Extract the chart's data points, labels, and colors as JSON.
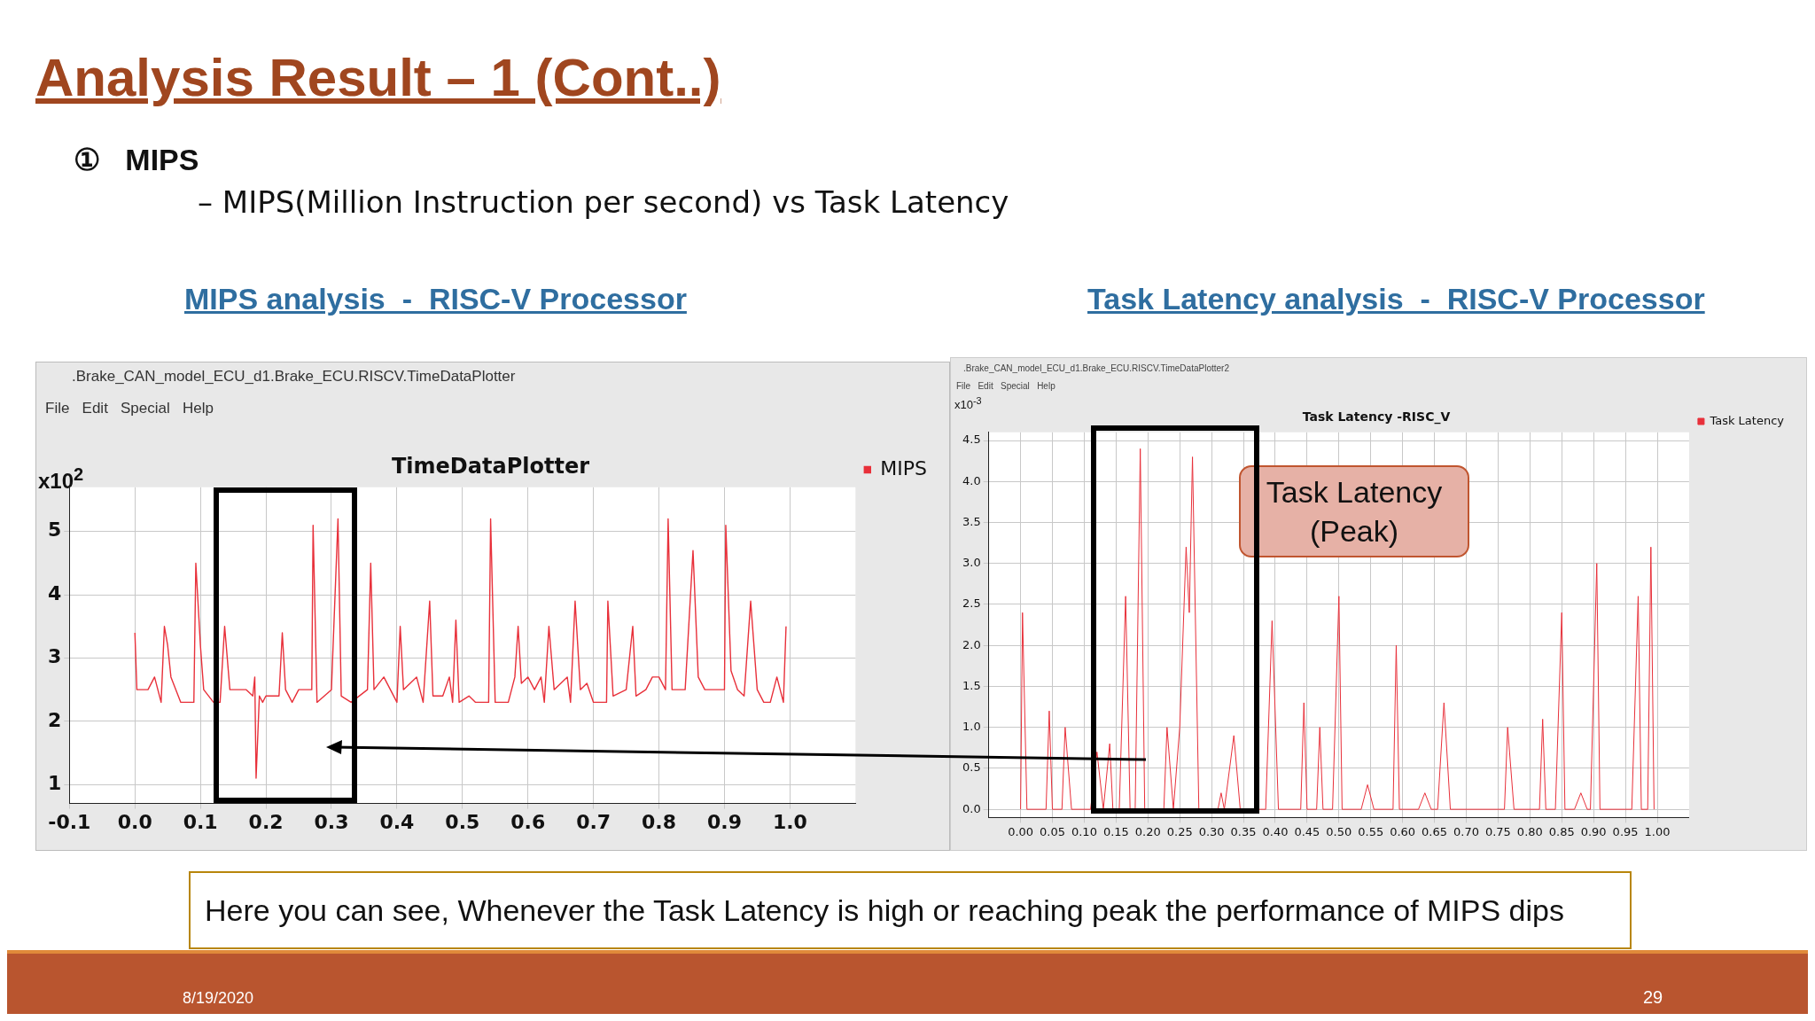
{
  "chart_data": [
    {
      "type": "line",
      "title": "TimeDataPlotter",
      "subtitle": "MIPS analysis  -  RISC-V Processor",
      "ylabel": "x10$^{2}$",
      "annotations": [
        "Analysis Result – 1 (Cont..)",
        "①   MIPS",
        "– MIPS(Million Instruction per second) vs Task Latency",
        ".Brake_CAN_model_ECU_d1.Brake_ECU.RISCV.TimeDataPlotter",
        "File   Edit   Special   Help",
        "Here you can see, Whenever the Task Latency is high or reaching peak the performance of  MIPS dips",
        "8/19/2020",
        "29"
      ],
      "x": [
        0,
        0.003,
        0.02,
        0.03,
        0.04,
        0.045,
        0.05,
        0.055,
        0.07,
        0.09,
        0.093,
        0.1,
        0.105,
        0.12,
        0.13,
        0.137,
        0.145,
        0.17,
        0.18,
        0.183,
        0.185,
        0.19,
        0.195,
        0.2,
        0.21,
        0.22,
        0.225,
        0.23,
        0.24,
        0.25,
        0.27,
        0.272,
        0.278,
        0.3,
        0.31,
        0.315,
        0.33,
        0.355,
        0.36,
        0.365,
        0.38,
        0.4,
        0.405,
        0.41,
        0.43,
        0.44,
        0.45,
        0.455,
        0.47,
        0.48,
        0.485,
        0.49,
        0.495,
        0.51,
        0.52,
        0.54,
        0.543,
        0.55,
        0.57,
        0.58,
        0.585,
        0.59,
        0.6,
        0.61,
        0.62,
        0.625,
        0.632,
        0.64,
        0.66,
        0.665,
        0.672,
        0.68,
        0.69,
        0.7,
        0.72,
        0.722,
        0.73,
        0.75,
        0.76,
        0.765,
        0.78,
        0.79,
        0.8,
        0.81,
        0.814,
        0.82,
        0.84,
        0.852,
        0.86,
        0.87,
        0.9,
        0.902,
        0.91,
        0.92,
        0.93,
        0.94,
        0.95,
        0.96,
        0.97,
        0.98,
        0.99,
        0.994
      ],
      "series": [
        {
          "name": "MIPS",
          "color": "#e8303a",
          "values": [
            3.4,
            2.5,
            2.5,
            2.7,
            2.3,
            3.5,
            3.2,
            2.7,
            2.3,
            2.3,
            4.5,
            3.2,
            2.5,
            2.3,
            2.3,
            3.5,
            2.5,
            2.5,
            2.4,
            2.7,
            1.1,
            2.4,
            2.3,
            2.4,
            2.4,
            2.4,
            3.4,
            2.5,
            2.3,
            2.5,
            2.5,
            5.1,
            2.3,
            2.5,
            5.2,
            2.4,
            2.3,
            2.5,
            4.5,
            2.5,
            2.7,
            2.3,
            3.5,
            2.5,
            2.7,
            2.3,
            3.9,
            2.4,
            2.4,
            2.7,
            2.3,
            3.6,
            2.3,
            2.4,
            2.3,
            2.3,
            5.2,
            2.3,
            2.3,
            2.7,
            3.5,
            2.6,
            2.7,
            2.5,
            2.7,
            2.3,
            3.5,
            2.5,
            2.7,
            2.3,
            3.9,
            2.5,
            2.6,
            2.3,
            2.3,
            3.9,
            2.4,
            2.5,
            3.5,
            2.4,
            2.5,
            2.7,
            2.7,
            2.5,
            5.2,
            2.5,
            2.5,
            4.7,
            2.7,
            2.5,
            2.5,
            5.1,
            2.8,
            2.5,
            2.4,
            3.9,
            2.5,
            2.3,
            2.3,
            2.7,
            2.3,
            3.5
          ]
        }
      ],
      "xlim": [
        -0.1,
        1.1
      ],
      "xticks": [
        -0.1,
        {
          "value": 0,
          "label": "0.0"
        },
        0.1,
        0.2,
        0.3,
        0.4,
        0.5,
        0.6,
        0.7,
        0.8,
        0.9,
        {
          "value": 1,
          "label": "1.0"
        }
      ],
      "ylim": [
        0.7,
        5.7
      ],
      "yticks": [
        1,
        2,
        3,
        4,
        5
      ],
      "grid": true,
      "legend": "right",
      "marker": "none",
      "line_style": "solid"
    },
    {
      "type": "line",
      "title": "Task Latency -RISC_V",
      "subtitle": "Task Latency analysis  -  RISC-V Processor",
      "ylabel": "x10$^{-3}$",
      "annotations": [
        ".Brake_CAN_model_ECU_d1.Brake_ECU.RISCV.TimeDataPlotter2",
        "File   Edit   Special   Help",
        "Task Latency\n(Peak)"
      ],
      "x": [
        0,
        0.003,
        0.01,
        0.04,
        0.045,
        0.05,
        0.065,
        0.07,
        0.08,
        0.11,
        0.12,
        0.13,
        0.14,
        0.145,
        0.155,
        0.165,
        0.172,
        0.18,
        0.188,
        0.195,
        0.225,
        0.23,
        0.24,
        0.25,
        0.26,
        0.265,
        0.27,
        0.28,
        0.31,
        0.315,
        0.32,
        0.335,
        0.345,
        0.385,
        0.395,
        0.405,
        0.44,
        0.445,
        0.45,
        0.465,
        0.47,
        0.475,
        0.49,
        0.5,
        0.505,
        0.535,
        0.545,
        0.555,
        0.585,
        0.59,
        0.595,
        0.625,
        0.635,
        0.645,
        0.655,
        0.665,
        0.675,
        0.76,
        0.765,
        0.775,
        0.815,
        0.82,
        0.825,
        0.84,
        0.85,
        0.855,
        0.87,
        0.88,
        0.89,
        0.895,
        0.905,
        0.91,
        0.96,
        0.97,
        0.975,
        0.985,
        0.99,
        0.995
      ],
      "series": [
        {
          "name": "Task Latency",
          "color": "#e8303a",
          "values": [
            0,
            2.4,
            0,
            0,
            1.2,
            0,
            0,
            1.0,
            0,
            0,
            0.7,
            0,
            0.8,
            0,
            0,
            2.6,
            0,
            0,
            4.4,
            0,
            0,
            1.0,
            0,
            1.0,
            3.2,
            2.4,
            4.3,
            0,
            0,
            0.2,
            0,
            0.9,
            0,
            0,
            2.3,
            0,
            0,
            1.3,
            0,
            0,
            1.0,
            0,
            0,
            2.6,
            0,
            0,
            0.3,
            0,
            0,
            2.0,
            0,
            0,
            0.2,
            0,
            0,
            1.3,
            0,
            0,
            1.0,
            0,
            0,
            1.1,
            0,
            0,
            2.4,
            0,
            0,
            0.2,
            0,
            0,
            3.0,
            0,
            0,
            2.6,
            0,
            0,
            3.2,
            0
          ]
        }
      ],
      "xlim": [
        -0.05,
        1.05
      ],
      "xticks": [
        {
          "value": 0,
          "label": "0.00"
        },
        0.05,
        {
          "value": 0.1,
          "label": "0.10"
        },
        0.15,
        {
          "value": 0.2,
          "label": "0.20"
        },
        0.25,
        {
          "value": 0.3,
          "label": "0.30"
        },
        0.35,
        {
          "value": 0.4,
          "label": "0.40"
        },
        0.45,
        {
          "value": 0.5,
          "label": "0.50"
        },
        0.55,
        {
          "value": 0.6,
          "label": "0.60"
        },
        0.65,
        {
          "value": 0.7,
          "label": "0.70"
        },
        0.75,
        {
          "value": 0.8,
          "label": "0.80"
        },
        0.85,
        {
          "value": 0.9,
          "label": "0.90"
        },
        0.95,
        {
          "value": 1,
          "label": "1.00"
        }
      ],
      "ylim": [
        -0.1,
        4.6
      ],
      "yticks": [
        {
          "value": 0,
          "label": "0.0"
        },
        0.5,
        {
          "value": 1,
          "label": "1.0"
        },
        1.5,
        {
          "value": 2,
          "label": "2.0"
        },
        2.5,
        {
          "value": 3,
          "label": "3.0"
        },
        3.5,
        {
          "value": 4,
          "label": "4.0"
        },
        4.5
      ],
      "grid": true,
      "legend": "right",
      "marker": "none",
      "line_style": "solid"
    }
  ]
}
